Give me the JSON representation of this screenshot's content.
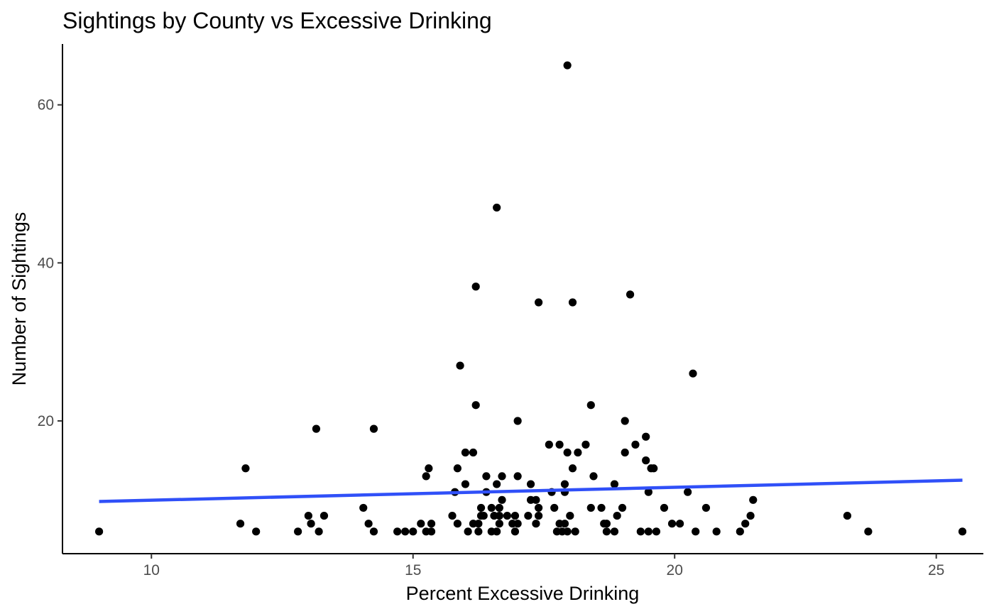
{
  "chart_data": {
    "type": "scatter",
    "title": "Sightings by County vs Excessive Drinking",
    "xlabel": "Percent Excessive Drinking",
    "ylabel": "Number of Sightings",
    "xlim": [
      8.3,
      25.9
    ],
    "ylim": [
      3.2,
      67.7
    ],
    "x_ticks": [
      10,
      15,
      20,
      25
    ],
    "y_ticks": [
      20,
      40,
      60
    ],
    "x_tick_labels": [
      "10",
      "15",
      "20",
      "25"
    ],
    "y_tick_labels": [
      "20",
      "40",
      "60"
    ],
    "grid": false,
    "legend": "none",
    "point_color": "#000000",
    "trend_color": "#3050f8",
    "trend_line": {
      "x": [
        9.0,
        25.5
      ],
      "y": [
        9.8,
        12.5
      ]
    },
    "points": [
      [
        9.0,
        6
      ],
      [
        11.7,
        7
      ],
      [
        11.8,
        14
      ],
      [
        12.0,
        6
      ],
      [
        12.8,
        6
      ],
      [
        13.0,
        8
      ],
      [
        13.05,
        7
      ],
      [
        13.15,
        19
      ],
      [
        13.2,
        6
      ],
      [
        13.3,
        8
      ],
      [
        14.05,
        9
      ],
      [
        14.15,
        7
      ],
      [
        14.25,
        19
      ],
      [
        14.25,
        6
      ],
      [
        14.7,
        6
      ],
      [
        14.85,
        6
      ],
      [
        15.0,
        6
      ],
      [
        15.15,
        7
      ],
      [
        15.25,
        13
      ],
      [
        15.25,
        6
      ],
      [
        15.3,
        14
      ],
      [
        15.35,
        7
      ],
      [
        15.35,
        6
      ],
      [
        15.75,
        8
      ],
      [
        15.8,
        11
      ],
      [
        15.85,
        7
      ],
      [
        15.85,
        14
      ],
      [
        15.9,
        27
      ],
      [
        16.0,
        12
      ],
      [
        16.0,
        16
      ],
      [
        16.05,
        6
      ],
      [
        16.15,
        16
      ],
      [
        16.15,
        7
      ],
      [
        16.2,
        22
      ],
      [
        16.2,
        37
      ],
      [
        16.25,
        6
      ],
      [
        16.25,
        7
      ],
      [
        16.3,
        9
      ],
      [
        16.3,
        8
      ],
      [
        16.35,
        8
      ],
      [
        16.4,
        13
      ],
      [
        16.4,
        11
      ],
      [
        16.5,
        9
      ],
      [
        16.5,
        6
      ],
      [
        16.55,
        8
      ],
      [
        16.6,
        47
      ],
      [
        16.6,
        12
      ],
      [
        16.6,
        6
      ],
      [
        16.65,
        9
      ],
      [
        16.65,
        7
      ],
      [
        16.65,
        8
      ],
      [
        16.7,
        13
      ],
      [
        16.7,
        10
      ],
      [
        16.8,
        8
      ],
      [
        16.9,
        7
      ],
      [
        16.95,
        8
      ],
      [
        16.95,
        6
      ],
      [
        17.0,
        7
      ],
      [
        17.0,
        20
      ],
      [
        17.0,
        13
      ],
      [
        17.2,
        8
      ],
      [
        17.25,
        10
      ],
      [
        17.25,
        12
      ],
      [
        17.35,
        10
      ],
      [
        17.35,
        7
      ],
      [
        17.4,
        9
      ],
      [
        17.4,
        8
      ],
      [
        17.4,
        35
      ],
      [
        17.6,
        17
      ],
      [
        17.65,
        11
      ],
      [
        17.7,
        9
      ],
      [
        17.75,
        6
      ],
      [
        17.8,
        17
      ],
      [
        17.8,
        7
      ],
      [
        17.85,
        6
      ],
      [
        17.9,
        7
      ],
      [
        17.9,
        12
      ],
      [
        17.9,
        11
      ],
      [
        17.95,
        16
      ],
      [
        17.95,
        6
      ],
      [
        17.95,
        65
      ],
      [
        18.0,
        8
      ],
      [
        18.05,
        35
      ],
      [
        18.05,
        14
      ],
      [
        18.1,
        6
      ],
      [
        18.15,
        16
      ],
      [
        18.3,
        17
      ],
      [
        18.4,
        22
      ],
      [
        18.4,
        9
      ],
      [
        18.45,
        13
      ],
      [
        18.6,
        9
      ],
      [
        18.65,
        7
      ],
      [
        18.7,
        7
      ],
      [
        18.7,
        6
      ],
      [
        18.85,
        6
      ],
      [
        18.85,
        12
      ],
      [
        18.9,
        8
      ],
      [
        19.0,
        9
      ],
      [
        19.05,
        20
      ],
      [
        19.05,
        16
      ],
      [
        19.15,
        36
      ],
      [
        19.25,
        17
      ],
      [
        19.35,
        6
      ],
      [
        19.45,
        18
      ],
      [
        19.45,
        15
      ],
      [
        19.5,
        6
      ],
      [
        19.5,
        11
      ],
      [
        19.55,
        14
      ],
      [
        19.6,
        14
      ],
      [
        19.65,
        6
      ],
      [
        19.8,
        9
      ],
      [
        19.95,
        7
      ],
      [
        20.1,
        7
      ],
      [
        20.25,
        11
      ],
      [
        20.35,
        26
      ],
      [
        20.4,
        6
      ],
      [
        20.6,
        9
      ],
      [
        20.8,
        6
      ],
      [
        21.25,
        6
      ],
      [
        21.35,
        7
      ],
      [
        21.45,
        8
      ],
      [
        21.5,
        10
      ],
      [
        23.3,
        8
      ],
      [
        23.7,
        6
      ],
      [
        25.5,
        6
      ]
    ]
  }
}
